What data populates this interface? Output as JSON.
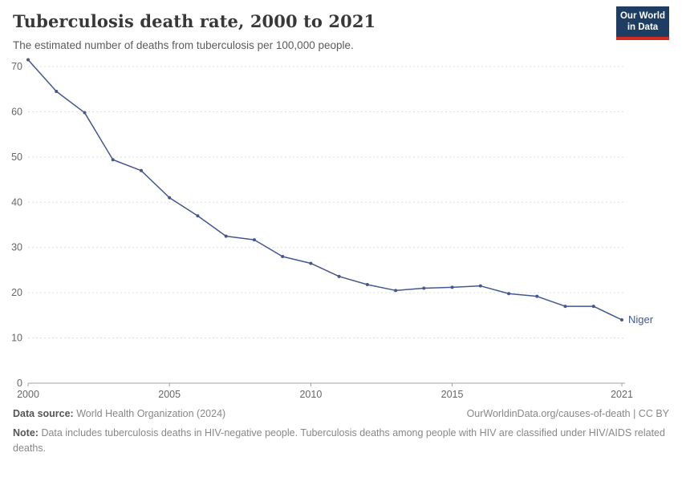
{
  "header": {
    "title": "Tuberculosis death rate, 2000 to 2021",
    "subtitle": "The estimated number of deaths from tuberculosis per 100,000 people.",
    "logo_line1": "Our World",
    "logo_line2": "in Data"
  },
  "chart_data": {
    "type": "line",
    "title": "Tuberculosis death rate, 2000 to 2021",
    "subtitle": "The estimated number of deaths from tuberculosis per 100,000 people.",
    "series": [
      {
        "name": "Niger",
        "color": "#44588e",
        "x": [
          2000,
          2001,
          2002,
          2003,
          2004,
          2005,
          2006,
          2007,
          2008,
          2009,
          2010,
          2011,
          2012,
          2013,
          2014,
          2015,
          2016,
          2017,
          2018,
          2019,
          2020,
          2021
        ],
        "values": [
          71.5,
          64.5,
          59.8,
          49.4,
          47,
          41,
          37,
          32.5,
          31.7,
          28,
          26.5,
          23.6,
          21.8,
          20.5,
          21,
          21.2,
          21.5,
          19.8,
          19.2,
          17,
          17,
          14
        ]
      }
    ],
    "xlim": [
      2000,
      2021
    ],
    "ylim": [
      0,
      70
    ],
    "xticks": [
      2000,
      2005,
      2010,
      2015,
      2021
    ],
    "yticks": [
      0,
      10,
      20,
      30,
      40,
      50,
      60,
      70
    ],
    "grid": "horizontal dashed",
    "legend": "end-of-line label",
    "xlabel": "",
    "ylabel": ""
  },
  "footer": {
    "source_label": "Data source:",
    "source_text": "World Health Organization (2024)",
    "credit": "OurWorldinData.org/causes-of-death | CC BY",
    "note_label": "Note:",
    "note_text": "Data includes tuberculosis deaths in HIV-negative people. Tuberculosis deaths among people with HIV are classified under HIV/AIDS related deaths."
  },
  "colors": {
    "line": "#44588e",
    "grid": "#dddddd",
    "axis": "#a0a0a0",
    "tick_text": "#666666",
    "logo_bg": "#1d3d63",
    "logo_red": "#d42b21"
  }
}
